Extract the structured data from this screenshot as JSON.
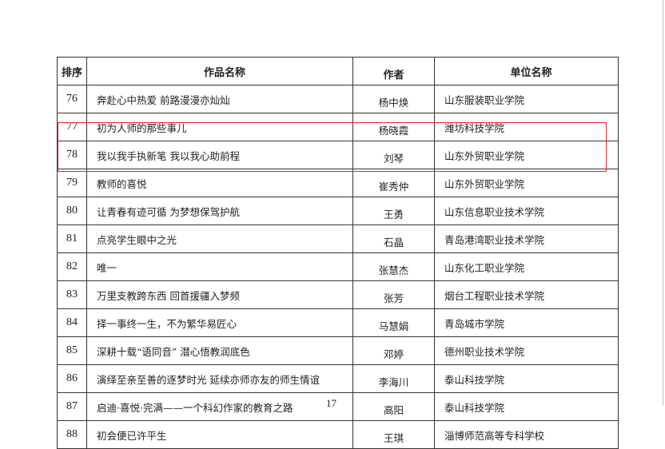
{
  "table": {
    "headers": [
      "排序",
      "作品名称",
      "作者",
      "单位名称"
    ],
    "rows": [
      {
        "rank": "76",
        "title": "奔赴心中热爱 前路漫漫亦灿灿",
        "author": "杨中焕",
        "unit": "山东服装职业学院"
      },
      {
        "rank": "77",
        "title": "初为人师的那些事儿",
        "author": "杨晓霞",
        "unit": "潍坊科技学院"
      },
      {
        "rank": "78",
        "title": "我以我手执新笔 我以我心助前程",
        "author": "刘琴",
        "unit": "山东外贸职业学院"
      },
      {
        "rank": "79",
        "title": "教师的喜悦",
        "author": "崔秀仲",
        "unit": "山东外贸职业学院"
      },
      {
        "rank": "80",
        "title": "让青春有迹可循 为梦想保驾护航",
        "author": "王勇",
        "unit": "山东信息职业技术学院"
      },
      {
        "rank": "81",
        "title": "点亮学生眼中之光",
        "author": "石晶",
        "unit": "青岛港湾职业技术学院"
      },
      {
        "rank": "82",
        "title": "唯一",
        "author": "张慧杰",
        "unit": "山东化工职业学院"
      },
      {
        "rank": "83",
        "title": "万里支教跨东西 回首援疆入梦频",
        "author": "张芳",
        "unit": "烟台工程职业技术学院"
      },
      {
        "rank": "84",
        "title": "择一事终一生，不为繁华易匠心",
        "author": "马慧娟",
        "unit": "青岛城市学院"
      },
      {
        "rank": "85",
        "title": "深耕十载“语同音” 潜心悟教润底色",
        "author": "邓婷",
        "unit": "德州职业技术学院"
      },
      {
        "rank": "86",
        "title": "演绎至亲至善的逐梦时光 延续亦师亦友的师生情谊",
        "author": "李海川",
        "unit": "泰山科技学院"
      },
      {
        "rank": "87",
        "title": "启迪·喜悦·完满——一个科幻作家的教育之路",
        "author": "高阳",
        "unit": "泰山科技学院"
      },
      {
        "rank": "88",
        "title": "初会便已许平生",
        "author": "王琪",
        "unit": "淄博师范高等专科学校"
      }
    ]
  },
  "highlight_color": "#d9262b",
  "page_number": "17"
}
